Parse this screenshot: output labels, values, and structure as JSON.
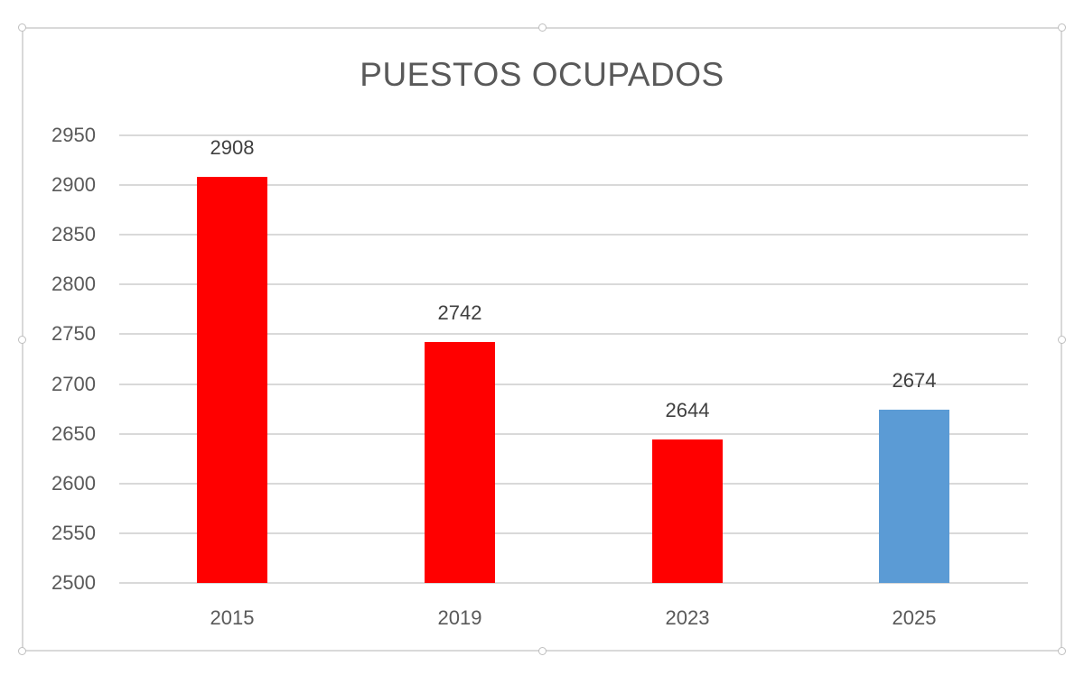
{
  "chart": {
    "title": "PUESTOS OCUPADOS",
    "yticks": [
      "2950",
      "2900",
      "2850",
      "2800",
      "2750",
      "2700",
      "2650",
      "2600",
      "2550",
      "2500"
    ],
    "bars": [
      {
        "category": "2015",
        "value": 2908,
        "label": "2908",
        "color": "#ff0000"
      },
      {
        "category": "2019",
        "value": 2742,
        "label": "2742",
        "color": "#ff0000"
      },
      {
        "category": "2023",
        "value": 2644,
        "label": "2644",
        "color": "#ff0000"
      },
      {
        "category": "2025",
        "value": 2674,
        "label": "2674",
        "color": "#5b9bd5"
      }
    ]
  },
  "chart_data": {
    "type": "bar",
    "title": "PUESTOS OCUPADOS",
    "categories": [
      "2015",
      "2019",
      "2023",
      "2025"
    ],
    "values": [
      2908,
      2742,
      2644,
      2674
    ],
    "colors": [
      "#ff0000",
      "#ff0000",
      "#ff0000",
      "#5b9bd5"
    ],
    "xlabel": "",
    "ylabel": "",
    "ylim": [
      2500,
      2950
    ],
    "ytick_step": 50,
    "grid": true,
    "legend": null,
    "data_labels": true
  }
}
